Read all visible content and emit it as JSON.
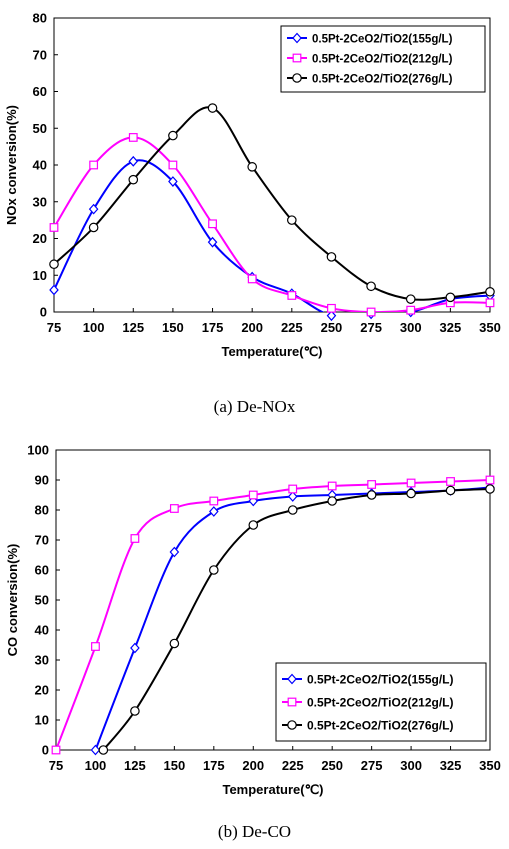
{
  "chart_data": [
    {
      "type": "line",
      "xlabel": "Temperature(℃)",
      "ylabel": "NOx conversion(%)",
      "xlim": [
        75,
        350
      ],
      "ylim": [
        0,
        80
      ],
      "x_ticks": [
        "75",
        "100",
        "125",
        "150",
        "175",
        "200",
        "225",
        "250",
        "275",
        "300",
        "325",
        "350"
      ],
      "y_ticks": [
        "0",
        "10",
        "20",
        "30",
        "40",
        "50",
        "60",
        "70",
        "80"
      ],
      "legend_position": "top-right",
      "grid": false,
      "caption": "(a)  De-NOx",
      "x": [
        75,
        100,
        125,
        150,
        175,
        200,
        225,
        250,
        275,
        300,
        325,
        350
      ],
      "series": [
        {
          "name": "0.5Pt-2CeO2/TiO2(155g/L)",
          "color": "#0000ff",
          "marker": "diamond",
          "values": [
            6,
            28,
            41,
            35.5,
            19,
            9.5,
            5,
            -1,
            -0.5,
            0,
            3.5,
            4.5
          ]
        },
        {
          "name": "0.5Pt-2CeO2/TiO2(212g/L)",
          "color": "#ff00ff",
          "marker": "square",
          "values": [
            23,
            40,
            47.5,
            40,
            24,
            9,
            4.5,
            1,
            0,
            0.5,
            2.5,
            2.5
          ]
        },
        {
          "name": "0.5Pt-2CeO2/TiO2(276g/L)",
          "color": "#000000",
          "marker": "circle",
          "values": [
            13,
            23,
            36,
            48,
            55.5,
            39.5,
            25,
            15,
            7,
            3.5,
            4,
            5.5
          ]
        }
      ]
    },
    {
      "type": "line",
      "xlabel": "Temperature(℃)",
      "ylabel": "CO conversion(%)",
      "xlim": [
        75,
        350
      ],
      "ylim": [
        0,
        100
      ],
      "x_ticks": [
        "75",
        "100",
        "125",
        "150",
        "175",
        "200",
        "225",
        "250",
        "275",
        "300",
        "325",
        "350"
      ],
      "y_ticks": [
        "0",
        "10",
        "20",
        "30",
        "40",
        "50",
        "60",
        "70",
        "80",
        "90",
        "100"
      ],
      "legend_position": "bottom-right",
      "grid": false,
      "caption": "(b)  De-CO",
      "series": [
        {
          "name": "0.5Pt-2CeO2/TiO2(155g/L)",
          "color": "#0000ff",
          "marker": "diamond",
          "x": [
            100,
            125,
            150,
            175,
            200,
            225,
            250,
            275,
            300,
            325,
            350
          ],
          "values": [
            0,
            34,
            66,
            79.5,
            83,
            84.5,
            85,
            85.5,
            86,
            86.5,
            87.5
          ]
        },
        {
          "name": "0.5Pt-2CeO2/TiO2(212g/L)",
          "color": "#ff00ff",
          "marker": "square",
          "x": [
            75,
            100,
            125,
            150,
            175,
            200,
            225,
            250,
            275,
            300,
            325,
            350
          ],
          "values": [
            0,
            34.5,
            70.5,
            80.5,
            83,
            85,
            87,
            88,
            88.5,
            89,
            89.5,
            90
          ]
        },
        {
          "name": "0.5Pt-2CeO2/TiO2(276g/L)",
          "color": "#000000",
          "marker": "circle",
          "x": [
            105,
            125,
            150,
            175,
            200,
            225,
            250,
            275,
            300,
            325,
            350
          ],
          "values": [
            0,
            13,
            35.5,
            60,
            75,
            80,
            83,
            85,
            85.5,
            86.5,
            87
          ]
        }
      ]
    }
  ]
}
